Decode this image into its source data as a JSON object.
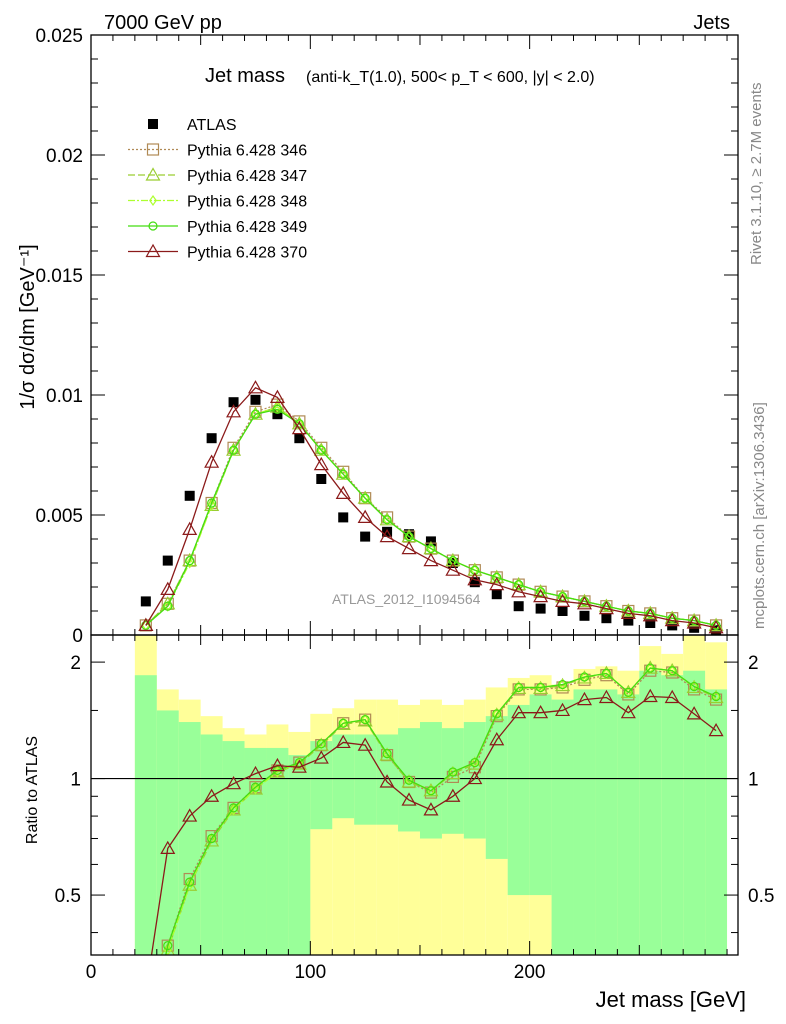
{
  "header": {
    "left": "7000 GeV pp",
    "right": "Jets"
  },
  "side_labels": {
    "rivet": "Rivet 3.1.10, ≥ 2.7M events",
    "mcplots": "mcplots.cern.ch [arXiv:1306.3436]"
  },
  "analysis_tag": "ATLAS_2012_I1094564",
  "colors": {
    "atlas": "#000000",
    "p346": "#b08a55",
    "p347": "#9acd32",
    "p348": "#adff2f",
    "p349": "#44dd11",
    "p370": "#8b1a1a",
    "band_inner": "#99ff99",
    "band_outer": "#ffff99"
  },
  "chart_data": [
    {
      "type": "scatter",
      "panel": "main",
      "title": "Jet mass",
      "title_detail": "(anti-k_T(1.0), 500< p_T < 600, |y| < 2.0)",
      "ylabel": "1/σ dσ/dm [GeV⁻¹]",
      "xlim": [
        0,
        295
      ],
      "ylim": [
        0,
        0.025
      ],
      "y_ticks": [
        "0",
        "0.005",
        "0.01",
        "0.015",
        "0.02",
        "0.025"
      ],
      "x": [
        25,
        35,
        45,
        55,
        65,
        75,
        85,
        95,
        105,
        115,
        125,
        135,
        145,
        155,
        165,
        175,
        185,
        195,
        205,
        215,
        225,
        235,
        245,
        255,
        265,
        275,
        285
      ],
      "series": [
        {
          "name": "ATLAS",
          "marker": "filled-square",
          "color_key": "atlas",
          "values": [
            0.0014,
            0.0031,
            0.0058,
            0.0082,
            0.0097,
            0.0098,
            0.0092,
            0.0082,
            0.0065,
            0.0049,
            0.0041,
            0.0043,
            0.0042,
            0.0039,
            0.003,
            0.0022,
            0.0017,
            0.0012,
            0.0011,
            0.001,
            0.0008,
            0.0007,
            0.0006,
            0.0005,
            0.0004,
            0.0003,
            0.0002
          ]
        },
        {
          "name": "Pythia 6.428 346",
          "marker": "open-square",
          "dash": "2,2",
          "color_key": "p346",
          "values": [
            0.0004,
            0.0013,
            0.0031,
            0.0055,
            0.0078,
            0.0093,
            0.0096,
            0.0089,
            0.0078,
            0.0068,
            0.0057,
            0.0049,
            0.0041,
            0.0036,
            0.0031,
            0.0027,
            0.0024,
            0.0021,
            0.0018,
            0.0016,
            0.0014,
            0.0012,
            0.001,
            0.0009,
            0.0007,
            0.0006,
            0.0004
          ]
        },
        {
          "name": "Pythia 6.428 347",
          "marker": "open-triangle",
          "dash": "7,3",
          "color_key": "p347",
          "values": [
            0.0004,
            0.0013,
            0.0031,
            0.0054,
            0.0077,
            0.0092,
            0.0095,
            0.0088,
            0.0077,
            0.0067,
            0.0057,
            0.0048,
            0.0041,
            0.0036,
            0.0031,
            0.0027,
            0.0024,
            0.0021,
            0.0018,
            0.0016,
            0.0014,
            0.0012,
            0.001,
            0.0009,
            0.0007,
            0.0006,
            0.0004
          ]
        },
        {
          "name": "Pythia 6.428 348",
          "marker": "open-diamond",
          "dash": "7,2,2,2",
          "color_key": "p348",
          "values": [
            0.0004,
            0.0012,
            0.003,
            0.0054,
            0.0077,
            0.0092,
            0.0095,
            0.0088,
            0.0077,
            0.0067,
            0.0057,
            0.0048,
            0.0041,
            0.0036,
            0.0031,
            0.0027,
            0.0024,
            0.0021,
            0.0018,
            0.0016,
            0.0014,
            0.0012,
            0.001,
            0.0009,
            0.0007,
            0.0006,
            0.0004
          ]
        },
        {
          "name": "Pythia 6.428 349",
          "marker": "open-circle",
          "dash": "",
          "color_key": "p349",
          "values": [
            0.0004,
            0.0012,
            0.0031,
            0.0055,
            0.0077,
            0.0092,
            0.0094,
            0.0088,
            0.0077,
            0.0067,
            0.0057,
            0.0048,
            0.0041,
            0.0036,
            0.0031,
            0.0027,
            0.0024,
            0.0021,
            0.0018,
            0.0016,
            0.0014,
            0.0012,
            0.001,
            0.0009,
            0.0007,
            0.0006,
            0.0004
          ]
        },
        {
          "name": "Pythia 6.428 370",
          "marker": "open-triangle",
          "dash": "",
          "color_key": "p370",
          "values": [
            0.0004,
            0.0019,
            0.0044,
            0.0072,
            0.0093,
            0.0103,
            0.0099,
            0.0086,
            0.0071,
            0.0059,
            0.0049,
            0.0041,
            0.0036,
            0.0031,
            0.0027,
            0.0023,
            0.0021,
            0.0018,
            0.0016,
            0.0014,
            0.0013,
            0.0011,
            0.0009,
            0.0008,
            0.0006,
            0.0005,
            0.0003
          ]
        }
      ]
    },
    {
      "type": "line",
      "panel": "ratio",
      "ylabel": "Ratio to ATLAS",
      "xlabel": "Jet mass [GeV]",
      "xlim": [
        0,
        295
      ],
      "ylim": [
        0.35,
        2.35
      ],
      "y_ticks": [
        "0.5",
        "1",
        "2"
      ],
      "x_ticks": [
        "0",
        "100",
        "200"
      ],
      "reference": 1,
      "x": [
        25,
        35,
        45,
        55,
        65,
        75,
        85,
        95,
        105,
        115,
        125,
        135,
        145,
        155,
        165,
        175,
        185,
        195,
        205,
        215,
        225,
        235,
        245,
        255,
        265,
        275,
        285
      ],
      "band_edges": [
        20,
        30,
        40,
        50,
        60,
        70,
        80,
        90,
        100,
        110,
        120,
        130,
        140,
        150,
        160,
        170,
        180,
        190,
        200,
        210,
        220,
        230,
        240,
        250,
        260,
        270,
        280,
        290
      ],
      "band_inner": {
        "low": [
          0.35,
          0.35,
          0.35,
          0.35,
          0.35,
          0.35,
          0.35,
          0.35,
          0.74,
          0.79,
          0.76,
          0.76,
          0.73,
          0.7,
          0.72,
          0.7,
          0.62,
          0.5,
          0.5,
          0.35,
          0.35,
          0.35,
          0.35,
          0.35,
          0.35,
          0.35,
          0.35
        ],
        "high": [
          1.85,
          1.5,
          1.4,
          1.3,
          1.25,
          1.2,
          1.2,
          1.15,
          1.25,
          1.3,
          1.3,
          1.3,
          1.35,
          1.4,
          1.35,
          1.4,
          1.45,
          1.55,
          1.65,
          1.6,
          1.7,
          1.7,
          1.65,
          1.9,
          1.85,
          1.9,
          1.7
        ]
      },
      "band_outer": {
        "low": [
          0.35,
          0.35,
          0.35,
          0.35,
          0.35,
          0.35,
          0.35,
          0.35,
          0.35,
          0.35,
          0.35,
          0.35,
          0.35,
          0.35,
          0.35,
          0.35,
          0.35,
          0.35,
          0.35,
          0.35,
          0.35,
          0.35,
          0.35,
          0.35,
          0.35,
          0.35,
          0.35
        ],
        "high": [
          2.35,
          1.7,
          1.6,
          1.45,
          1.35,
          1.3,
          1.38,
          1.32,
          1.47,
          1.52,
          1.6,
          1.6,
          1.55,
          1.6,
          1.55,
          1.6,
          1.72,
          1.82,
          1.85,
          1.75,
          1.92,
          1.95,
          1.9,
          2.2,
          2.1,
          2.35,
          2.25
        ]
      },
      "series": [
        {
          "name": "Pythia 6.428 346",
          "marker": "open-square",
          "dash": "2,2",
          "color_key": "p346",
          "values": [
            0.2,
            0.37,
            0.55,
            0.71,
            0.84,
            0.95,
            1.05,
            1.1,
            1.22,
            1.39,
            1.42,
            1.15,
            0.98,
            0.92,
            1.01,
            1.07,
            1.45,
            1.7,
            1.7,
            1.72,
            1.8,
            1.85,
            1.65,
            1.9,
            1.88,
            1.7,
            1.6
          ]
        },
        {
          "name": "Pythia 6.428 347",
          "marker": "open-triangle",
          "dash": "7,3",
          "color_key": "p347",
          "values": [
            0.2,
            0.36,
            0.53,
            0.69,
            0.83,
            0.94,
            1.04,
            1.09,
            1.22,
            1.38,
            1.41,
            1.15,
            0.98,
            0.93,
            1.03,
            1.09,
            1.46,
            1.71,
            1.71,
            1.74,
            1.82,
            1.87,
            1.67,
            1.93,
            1.9,
            1.72,
            1.62
          ]
        },
        {
          "name": "Pythia 6.428 348",
          "marker": "open-diamond",
          "dash": "7,2,2,2",
          "color_key": "p348",
          "values": [
            0.2,
            0.36,
            0.53,
            0.7,
            0.83,
            0.94,
            1.04,
            1.1,
            1.23,
            1.39,
            1.42,
            1.16,
            0.99,
            0.93,
            1.04,
            1.1,
            1.47,
            1.72,
            1.72,
            1.75,
            1.83,
            1.87,
            1.67,
            1.93,
            1.9,
            1.73,
            1.63
          ]
        },
        {
          "name": "Pythia 6.428 349",
          "marker": "open-circle",
          "dash": "",
          "color_key": "p349",
          "values": [
            0.2,
            0.37,
            0.54,
            0.7,
            0.84,
            0.95,
            1.05,
            1.1,
            1.23,
            1.39,
            1.42,
            1.16,
            0.99,
            0.93,
            1.04,
            1.1,
            1.47,
            1.72,
            1.72,
            1.75,
            1.83,
            1.87,
            1.67,
            1.93,
            1.9,
            1.73,
            1.63
          ]
        },
        {
          "name": "Pythia 6.428 370",
          "marker": "open-triangle",
          "dash": "",
          "color_key": "p370",
          "values": [
            0.28,
            0.66,
            0.8,
            0.9,
            0.97,
            1.03,
            1.08,
            1.07,
            1.13,
            1.24,
            1.22,
            0.98,
            0.88,
            0.83,
            0.9,
            1.0,
            1.26,
            1.48,
            1.48,
            1.5,
            1.6,
            1.62,
            1.48,
            1.63,
            1.62,
            1.47,
            1.33
          ]
        }
      ]
    }
  ]
}
